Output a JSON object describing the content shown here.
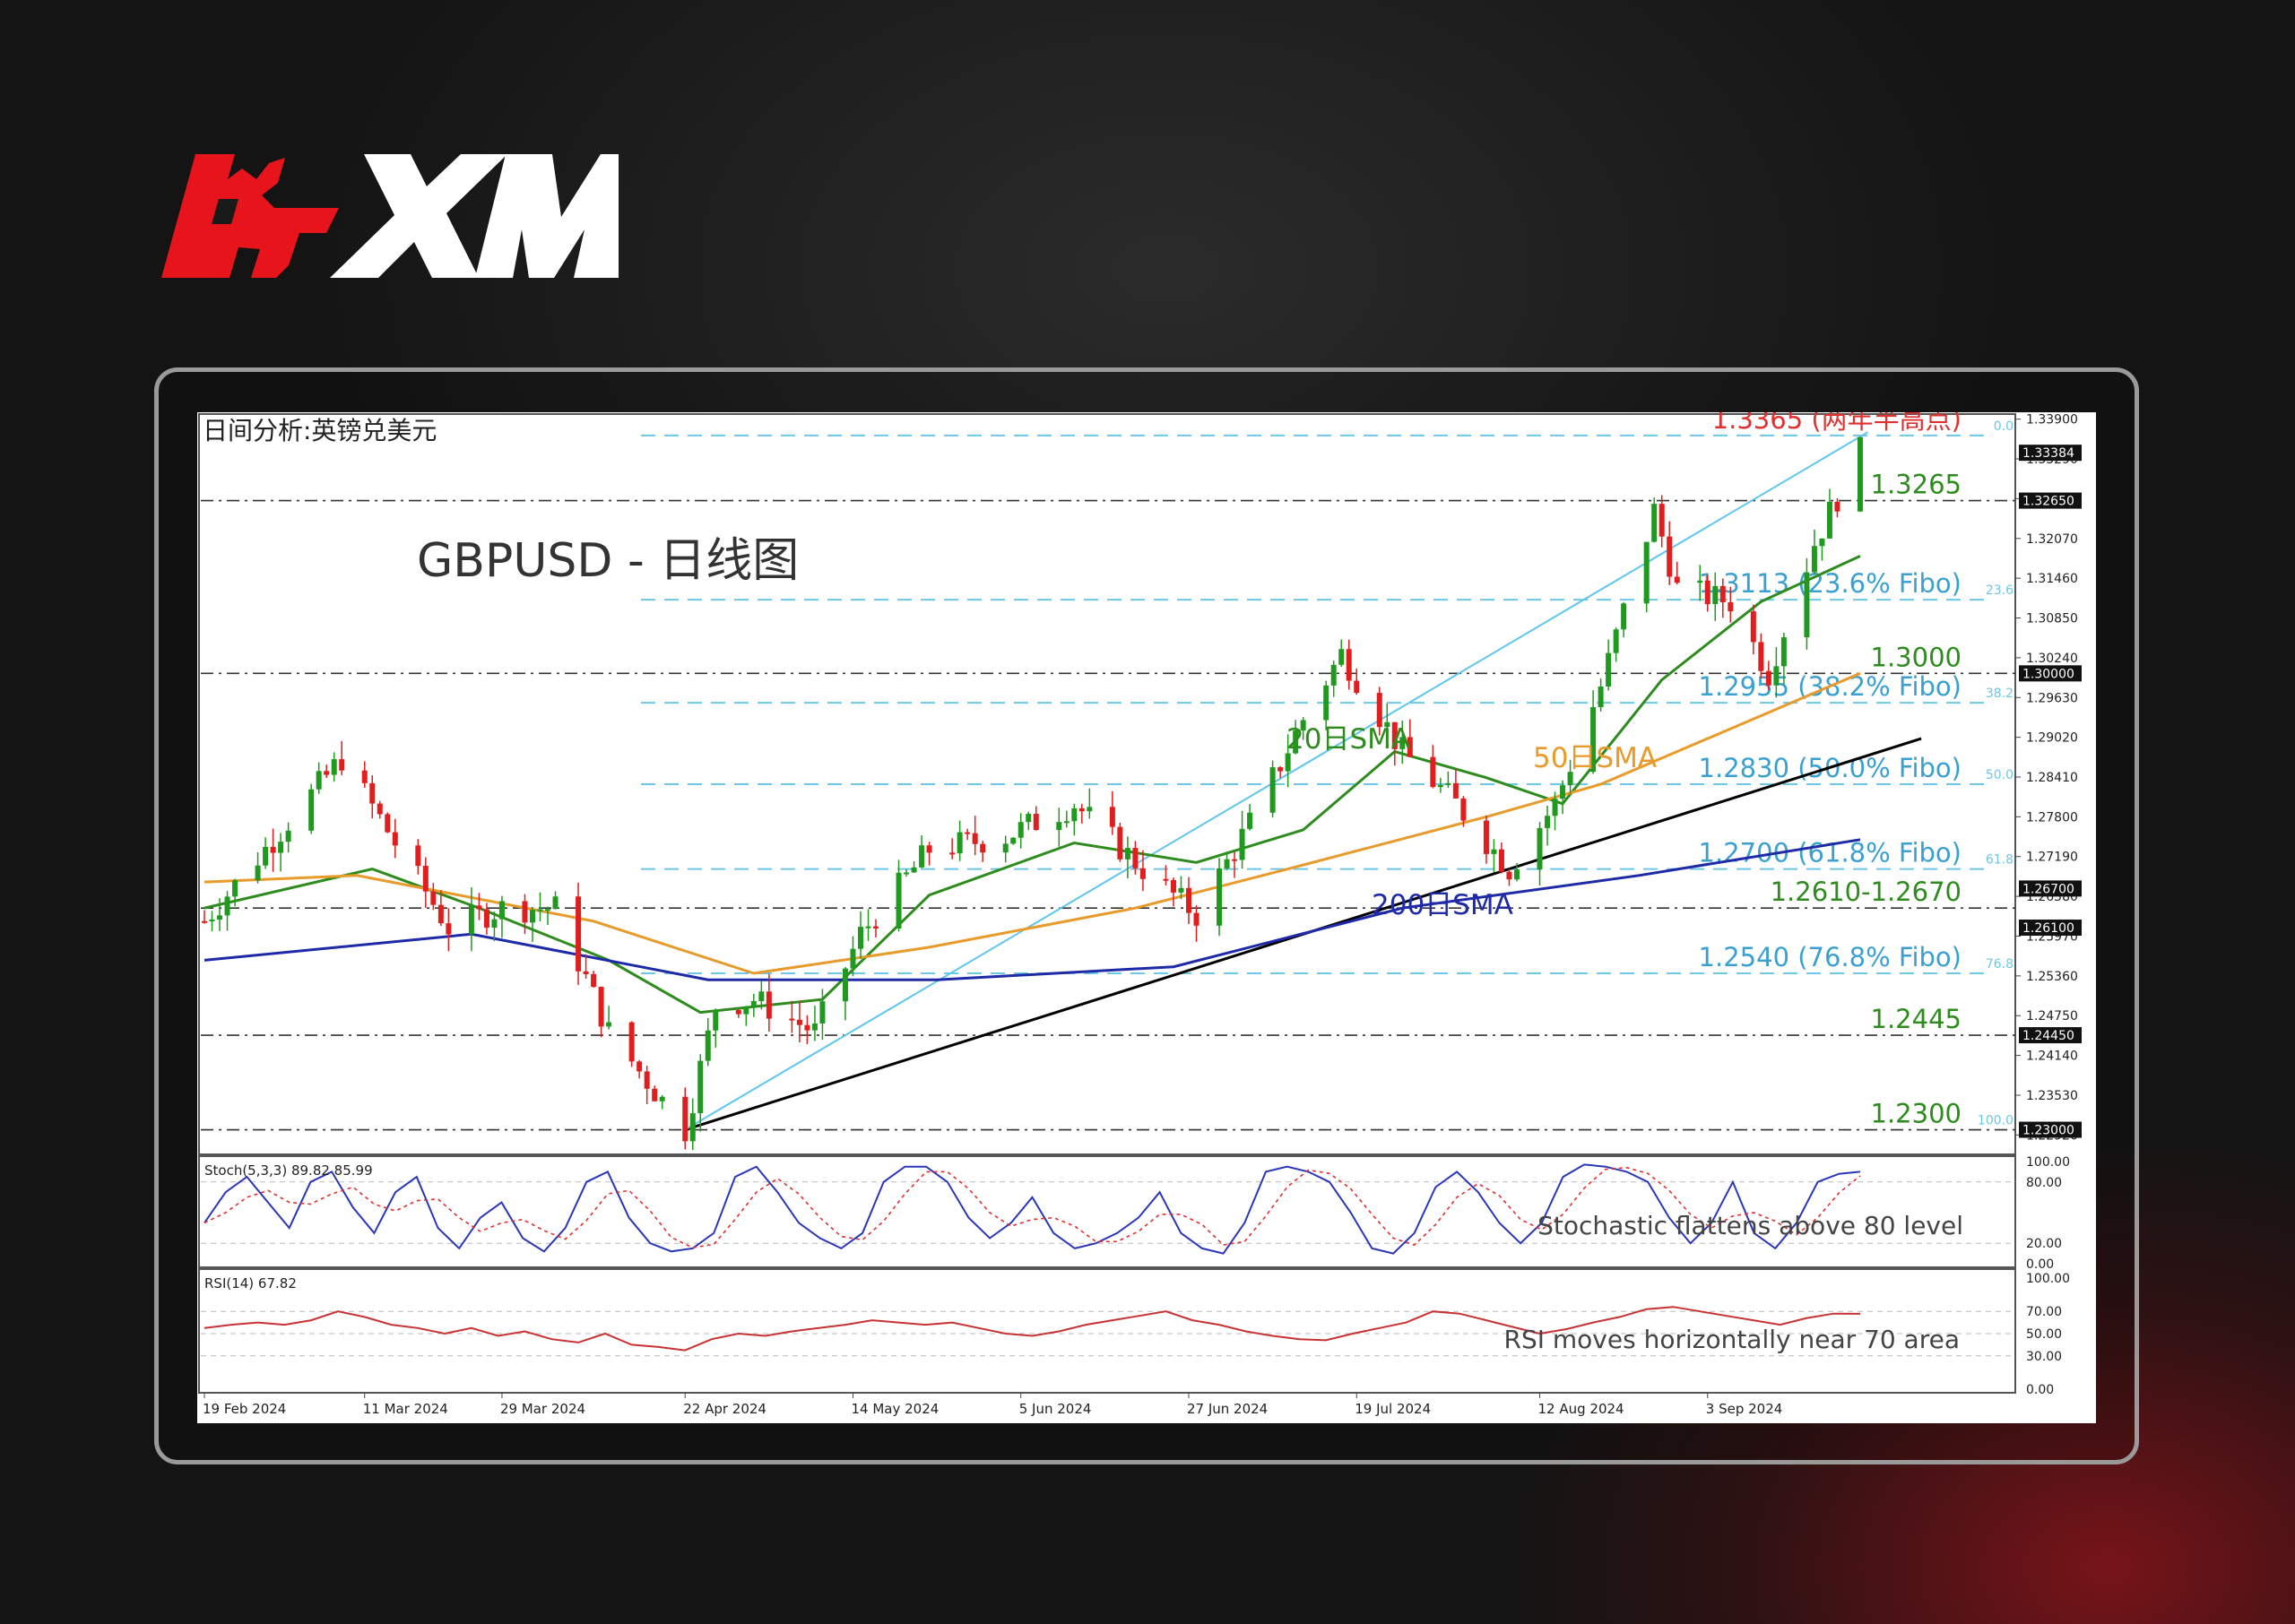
{
  "brand": {
    "name": "XM",
    "colors": {
      "red": "#e8141c",
      "white": "#ffffff"
    }
  },
  "chart_header": {
    "cn_title": "日间分析:英镑兑美元",
    "overlay_title": "GBPUSD - 日线图"
  },
  "chart_data": {
    "type": "candlestick",
    "symbol": "GBPUSD",
    "timeframe": "Daily",
    "ylim": [
      1.2265,
      1.3395
    ],
    "price_ticks": [
      "1.33900",
      "1.33290",
      "1.32680",
      "1.32070",
      "1.31460",
      "1.30850",
      "1.30240",
      "1.29630",
      "1.29020",
      "1.28410",
      "1.27800",
      "1.27190",
      "1.26580",
      "1.25970",
      "1.25360",
      "1.24750",
      "1.24140",
      "1.23530",
      "1.22920"
    ],
    "date_labels": [
      "19 Feb 2024",
      "11 Mar 2024",
      "29 Mar 2024",
      "22 Apr 2024",
      "14 May 2024",
      "5 Jun 2024",
      "27 Jun 2024",
      "19 Jul 2024",
      "12 Aug 2024",
      "3 Sep 2024"
    ],
    "price_boxes": [
      "1.33384",
      "1.32650",
      "1.30000",
      "1.26700",
      "1.26100",
      "1.24450",
      "1.23000"
    ],
    "close_path": [
      [
        "2024-02-19",
        1.262
      ],
      [
        "2024-03-08",
        1.287
      ],
      [
        "2024-03-15",
        1.274
      ],
      [
        "2024-03-22",
        1.261
      ],
      [
        "2024-03-29",
        1.264
      ],
      [
        "2024-04-05",
        1.264
      ],
      [
        "2024-04-12",
        1.245
      ],
      [
        "2024-04-22",
        1.23
      ],
      [
        "2024-04-26",
        1.249
      ],
      [
        "2024-05-01",
        1.25
      ],
      [
        "2024-05-09",
        1.245
      ],
      [
        "2024-05-15",
        1.26
      ],
      [
        "2024-05-24",
        1.273
      ],
      [
        "2024-06-03",
        1.275
      ],
      [
        "2024-06-12",
        1.28
      ],
      [
        "2024-06-21",
        1.27
      ],
      [
        "2024-06-28",
        1.263
      ],
      [
        "2024-07-05",
        1.277
      ],
      [
        "2024-07-12",
        1.293
      ],
      [
        "2024-07-17",
        1.303
      ],
      [
        "2024-07-25",
        1.288
      ],
      [
        "2024-08-01",
        1.28
      ],
      [
        "2024-08-08",
        1.27
      ],
      [
        "2024-08-14",
        1.28
      ],
      [
        "2024-08-20",
        1.298
      ],
      [
        "2024-08-27",
        1.325
      ],
      [
        "2024-08-30",
        1.313
      ],
      [
        "2024-09-06",
        1.311
      ],
      [
        "2024-09-11",
        1.3
      ],
      [
        "2024-09-17",
        1.32
      ],
      [
        "2024-09-23",
        1.334
      ]
    ],
    "horizontal_levels": [
      {
        "label": "1.3365 (两年半高点)",
        "value": 1.3365,
        "color": "#e03030",
        "style": "dash-cyan",
        "fibo": "0.0"
      },
      {
        "label": "1.3265",
        "value": 1.3265,
        "color": "#2e8b1e",
        "style": "dashdot"
      },
      {
        "label": "1.3113 (23.6% Fibo)",
        "value": 1.3113,
        "color": "#3aa0d0",
        "style": "dash-cyan",
        "fibo": "23.6"
      },
      {
        "label": "1.3000",
        "value": 1.3,
        "color": "#2e8b1e",
        "style": "dashdot"
      },
      {
        "label": "1.2955 (38.2% Fibo)",
        "value": 1.2955,
        "color": "#3aa0d0",
        "style": "dash-cyan",
        "fibo": "38.2"
      },
      {
        "label": "1.2830 (50.0% Fibo)",
        "value": 1.283,
        "color": "#3aa0d0",
        "style": "dash-cyan",
        "fibo": "50.0"
      },
      {
        "label": "1.2700 (61.8% Fibo)",
        "value": 1.27,
        "color": "#3aa0d0",
        "style": "dash-cyan",
        "fibo": "61.8"
      },
      {
        "label": "1.2610-1.2670",
        "value": 1.264,
        "color": "#2e8b1e",
        "style": "dashdot"
      },
      {
        "label": "1.2540 (76.8% Fibo)",
        "value": 1.254,
        "color": "#3aa0d0",
        "style": "dash-cyan",
        "fibo": "76.8"
      },
      {
        "label": "1.2445",
        "value": 1.2445,
        "color": "#2e8b1e",
        "style": "dashdot"
      },
      {
        "label": "1.2300",
        "value": 1.23,
        "color": "#2e8b1e",
        "style": "dashdot",
        "fibo": "100.0"
      }
    ],
    "sma_labels": [
      {
        "label": "20日SMA",
        "color": "#2e8b1e"
      },
      {
        "label": "50日SMA",
        "color": "#e89a2a"
      },
      {
        "label": "200日SMA",
        "color": "#1e2aa8"
      }
    ],
    "series": [
      {
        "name": "20日SMA",
        "color": "#2e8b1e",
        "points": [
          [
            "2024-02-19",
            1.264
          ],
          [
            "2024-03-12",
            1.27
          ],
          [
            "2024-03-26",
            1.264
          ],
          [
            "2024-04-12",
            1.256
          ],
          [
            "2024-04-24",
            1.248
          ],
          [
            "2024-05-10",
            1.25
          ],
          [
            "2024-05-24",
            1.266
          ],
          [
            "2024-06-12",
            1.274
          ],
          [
            "2024-06-28",
            1.271
          ],
          [
            "2024-07-12",
            1.276
          ],
          [
            "2024-07-24",
            1.288
          ],
          [
            "2024-08-05",
            1.284
          ],
          [
            "2024-08-15",
            1.28
          ],
          [
            "2024-08-28",
            1.299
          ],
          [
            "2024-09-10",
            1.311
          ],
          [
            "2024-09-23",
            1.318
          ]
        ]
      },
      {
        "name": "50日SMA",
        "color": "#e89a2a",
        "points": [
          [
            "2024-02-19",
            1.268
          ],
          [
            "2024-03-10",
            1.269
          ],
          [
            "2024-04-10",
            1.262
          ],
          [
            "2024-05-01",
            1.254
          ],
          [
            "2024-05-24",
            1.258
          ],
          [
            "2024-06-20",
            1.264
          ],
          [
            "2024-07-10",
            1.27
          ],
          [
            "2024-08-05",
            1.278
          ],
          [
            "2024-08-20",
            1.283
          ],
          [
            "2024-09-23",
            1.3
          ]
        ]
      },
      {
        "name": "200日SMA",
        "color": "#1e2aa8",
        "points": [
          [
            "2024-02-19",
            1.256
          ],
          [
            "2024-03-25",
            1.26
          ],
          [
            "2024-04-25",
            1.253
          ],
          [
            "2024-05-25",
            1.253
          ],
          [
            "2024-06-25",
            1.255
          ],
          [
            "2024-07-25",
            1.264
          ],
          [
            "2024-08-25",
            1.269
          ],
          [
            "2024-09-23",
            1.2745
          ]
        ]
      }
    ],
    "trendlines": [
      {
        "name": "support",
        "color": "#000000",
        "from": [
          "2024-04-22",
          1.23
        ],
        "to": [
          "2024-10-01",
          1.29
        ]
      },
      {
        "name": "channel",
        "color": "#5ec6ee",
        "from": [
          "2024-04-22",
          1.23
        ],
        "to": [
          "2024-09-24",
          1.337
        ]
      }
    ],
    "indicators": [
      {
        "name": "Stoch(5,3,3)",
        "reading": "Stoch(5,3,3) 89.82 85.99",
        "ticks": [
          "100.00",
          "80.00",
          "20.00",
          "0.00"
        ],
        "note": "Stochastic flattens above 80 level",
        "values": [
          40,
          70,
          85,
          60,
          35,
          80,
          90,
          55,
          30,
          70,
          85,
          35,
          15,
          45,
          60,
          25,
          12,
          35,
          80,
          90,
          45,
          20,
          12,
          15,
          30,
          85,
          95,
          70,
          40,
          25,
          15,
          30,
          80,
          95,
          95,
          80,
          45,
          25,
          40,
          65,
          30,
          15,
          20,
          30,
          45,
          70,
          30,
          15,
          10,
          40,
          90,
          95,
          90,
          80,
          50,
          15,
          10,
          30,
          75,
          90,
          70,
          40,
          20,
          40,
          85,
          97,
          95,
          90,
          80,
          45,
          20,
          40,
          80,
          30,
          15,
          40,
          80,
          88,
          90
        ]
      },
      {
        "name": "RSI(14)",
        "reading": "RSI(14) 67.82",
        "ticks": [
          "100.00",
          "70.00",
          "50.00",
          "30.00",
          "0.00"
        ],
        "note": "RSI moves horizontally near 70 area",
        "values": [
          55,
          58,
          60,
          58,
          62,
          70,
          65,
          58,
          55,
          50,
          55,
          48,
          52,
          45,
          42,
          50,
          40,
          38,
          35,
          45,
          50,
          48,
          52,
          55,
          58,
          62,
          60,
          58,
          60,
          55,
          50,
          48,
          52,
          58,
          62,
          66,
          70,
          62,
          58,
          52,
          48,
          45,
          44,
          50,
          55,
          60,
          70,
          68,
          62,
          56,
          50,
          54,
          60,
          65,
          72,
          74,
          70,
          66,
          62,
          58,
          64,
          68,
          67.8
        ]
      }
    ]
  }
}
